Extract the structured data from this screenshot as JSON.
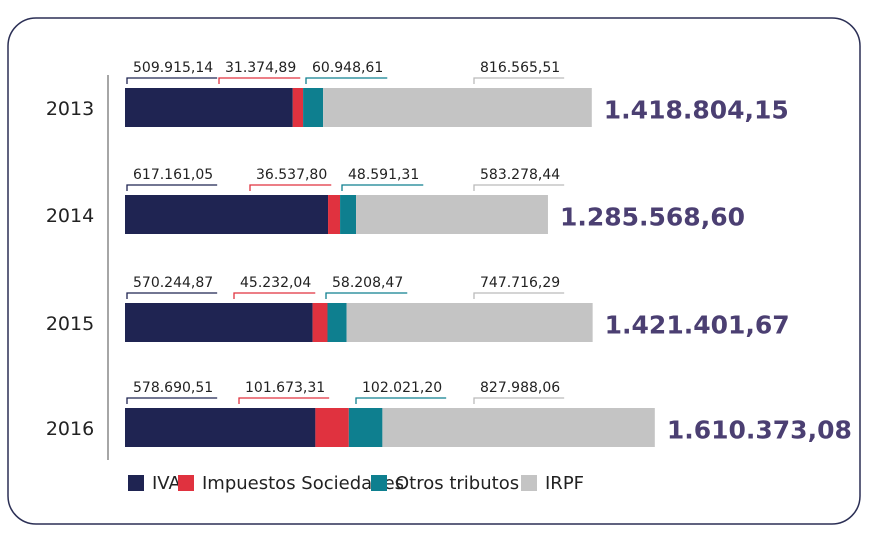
{
  "chart_data": {
    "type": "stacked-bar-horizontal",
    "categories": [
      "2013",
      "2014",
      "2015",
      "2016"
    ],
    "series": [
      {
        "name": "IVA",
        "color": "#1f2452",
        "values": [
          509915.14,
          617161.05,
          570244.87,
          578690.51
        ],
        "value_labels": [
          "509.915,14",
          "617.161,05",
          "570.244,87",
          "578.690,51"
        ]
      },
      {
        "name": "Impuestos Sociedades",
        "color": "#e0323f",
        "values": [
          31374.89,
          36537.8,
          45232.04,
          101673.31
        ],
        "value_labels": [
          "31.374,89",
          "36.537,80",
          "45.232,04",
          "101.673,31"
        ]
      },
      {
        "name": "Otros tributos",
        "color": "#0e7f8f",
        "values": [
          60948.61,
          48591.31,
          58208.47,
          102021.2
        ],
        "value_labels": [
          "60.948,61",
          "48.591,31",
          "58.208,47",
          "102.021,20"
        ]
      },
      {
        "name": "IRPF",
        "color": "#c4c4c4",
        "values": [
          816565.51,
          583278.44,
          747716.29,
          827988.06
        ],
        "value_labels": [
          "816.565,51",
          "583.278,44",
          "747.716,29",
          "827.988,06"
        ]
      }
    ],
    "totals": [
      1418804.15,
      1285568.6,
      1421401.67,
      1610373.08
    ],
    "total_labels": [
      "1.418.804,15",
      "1.285.568,60",
      "1.421.401,67",
      "1.610.373,08"
    ]
  }
}
